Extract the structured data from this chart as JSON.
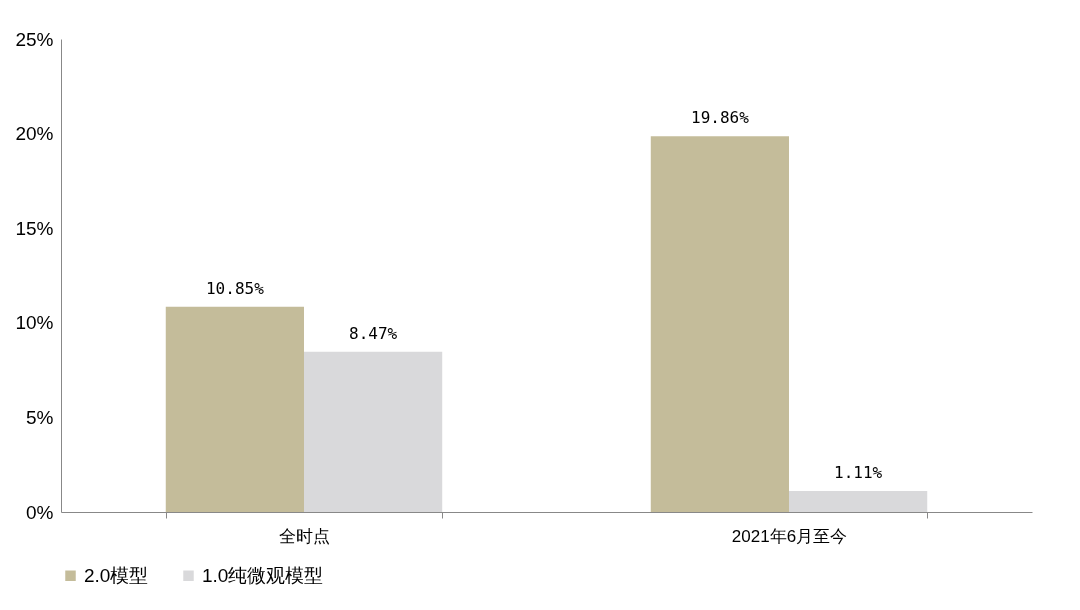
{
  "chart_data": {
    "type": "bar",
    "categories": [
      "全时点",
      "2021年6月至今"
    ],
    "series": [
      {
        "name": "2.0模型",
        "color": "#c4bc9a",
        "values": [
          10.85,
          19.86
        ],
        "value_labels": [
          "10.85%",
          "19.86%"
        ]
      },
      {
        "name": "1.0纯微观模型",
        "color": "#d9d9db",
        "values": [
          8.47,
          1.11
        ],
        "value_labels": [
          "8.47%",
          "1.11%"
        ]
      }
    ],
    "ylim": [
      0,
      25
    ],
    "yticks": [
      {
        "value": 0,
        "label": "0%"
      },
      {
        "value": 5,
        "label": "5%"
      },
      {
        "value": 10,
        "label": "10%"
      },
      {
        "value": 15,
        "label": "15%"
      },
      {
        "value": 20,
        "label": "20%"
      },
      {
        "value": 25,
        "label": "25%"
      }
    ],
    "grid": false,
    "legend": "bottom"
  }
}
